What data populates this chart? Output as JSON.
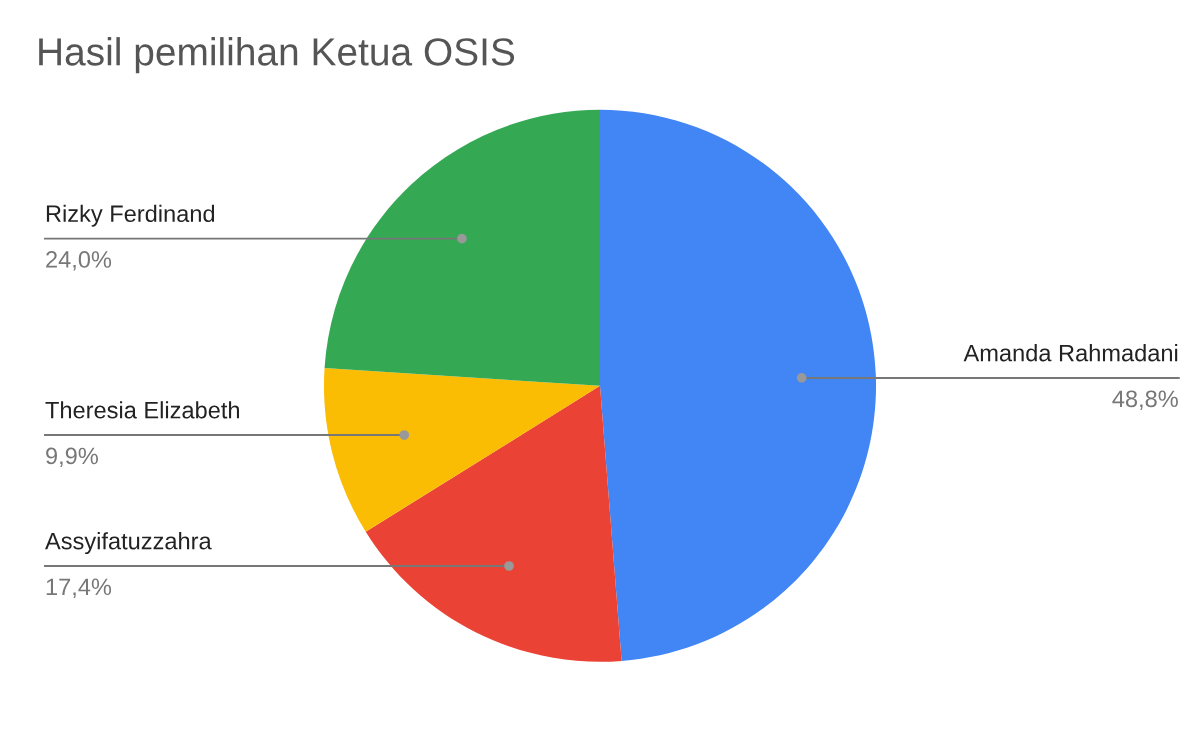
{
  "chart_data": {
    "type": "pie",
    "title": "Hasil pemilihan Ketua OSIS",
    "categories": [
      "Amanda Rahmadani",
      "Assyifatuzzahra",
      "Theresia Elizabeth",
      "Rizky Ferdinand"
    ],
    "values": [
      48.8,
      17.4,
      9.9,
      24.0
    ],
    "value_labels": [
      "48,8%",
      "17,4%",
      "9,9%",
      "24,0%"
    ],
    "colors": [
      "#4285f4",
      "#ea4335",
      "#fbbc04",
      "#34a853"
    ],
    "legend": false
  }
}
